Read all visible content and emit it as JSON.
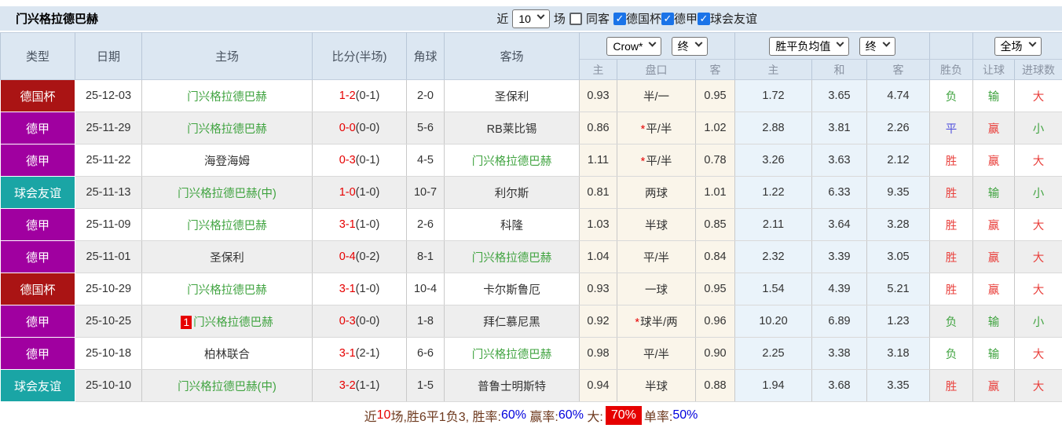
{
  "topbar": {
    "title": "门兴格拉德巴赫",
    "recent_label": "近",
    "recent_value": "10",
    "matches_label": "场",
    "same_opponent_label": "同客",
    "same_opponent_checked": false,
    "filters": [
      {
        "label": "德国杯",
        "checked": true
      },
      {
        "label": "德甲",
        "checked": true
      },
      {
        "label": "球会友谊",
        "checked": true
      }
    ]
  },
  "header": {
    "columns": [
      "类型",
      "日期",
      "主场",
      "比分(半场)",
      "角球",
      "客场"
    ],
    "selects": {
      "odds_company": "Crow*",
      "odds_time1": "终",
      "avg_mode": "胜平负均值",
      "odds_time2": "终",
      "scope": "全场"
    },
    "sub_columns": [
      "主",
      "盘口",
      "客",
      "主",
      "和",
      "客",
      "胜负",
      "让球",
      "进球数"
    ]
  },
  "rows": [
    {
      "type": "德国杯",
      "date": "25-12-03",
      "home": "门兴格拉德巴赫",
      "home_self": true,
      "home_badge": "",
      "score": "1-2",
      "half": "(0-1)",
      "corners": "2-0",
      "away": "圣保利",
      "away_self": false,
      "star": false,
      "odds": [
        "0.93",
        "半/一",
        "0.95"
      ],
      "avg": [
        "1.72",
        "3.65",
        "4.74"
      ],
      "result": [
        "负",
        "green"
      ],
      "handicap_result": [
        "输",
        "green"
      ],
      "goals": [
        "大",
        "red"
      ]
    },
    {
      "type": "德甲",
      "date": "25-11-29",
      "home": "门兴格拉德巴赫",
      "home_self": true,
      "home_badge": "",
      "score": "0-0",
      "half": "(0-0)",
      "corners": "5-6",
      "away": "RB莱比锡",
      "away_self": false,
      "star": true,
      "odds": [
        "0.86",
        "平/半",
        "1.02"
      ],
      "avg": [
        "2.88",
        "3.81",
        "2.26"
      ],
      "result": [
        "平",
        "blue"
      ],
      "handicap_result": [
        "赢",
        "red"
      ],
      "goals": [
        "小",
        "green"
      ]
    },
    {
      "type": "德甲",
      "date": "25-11-22",
      "home": "海登海姆",
      "home_self": false,
      "home_badge": "",
      "score": "0-3",
      "half": "(0-1)",
      "corners": "4-5",
      "away": "门兴格拉德巴赫",
      "away_self": true,
      "star": true,
      "odds": [
        "1.11",
        "平/半",
        "0.78"
      ],
      "avg": [
        "3.26",
        "3.63",
        "2.12"
      ],
      "result": [
        "胜",
        "red"
      ],
      "handicap_result": [
        "赢",
        "red"
      ],
      "goals": [
        "大",
        "red"
      ]
    },
    {
      "type": "球会友谊",
      "date": "25-11-13",
      "home": "门兴格拉德巴赫(中)",
      "home_self": true,
      "home_badge": "",
      "score": "1-0",
      "half": "(1-0)",
      "corners": "10-7",
      "away": "利尔斯",
      "away_self": false,
      "star": false,
      "odds": [
        "0.81",
        "两球",
        "1.01"
      ],
      "avg": [
        "1.22",
        "6.33",
        "9.35"
      ],
      "result": [
        "胜",
        "red"
      ],
      "handicap_result": [
        "输",
        "green"
      ],
      "goals": [
        "小",
        "green"
      ]
    },
    {
      "type": "德甲",
      "date": "25-11-09",
      "home": "门兴格拉德巴赫",
      "home_self": true,
      "home_badge": "",
      "score": "3-1",
      "half": "(1-0)",
      "corners": "2-6",
      "away": "科隆",
      "away_self": false,
      "star": false,
      "odds": [
        "1.03",
        "半球",
        "0.85"
      ],
      "avg": [
        "2.11",
        "3.64",
        "3.28"
      ],
      "result": [
        "胜",
        "red"
      ],
      "handicap_result": [
        "赢",
        "red"
      ],
      "goals": [
        "大",
        "red"
      ]
    },
    {
      "type": "德甲",
      "date": "25-11-01",
      "home": "圣保利",
      "home_self": false,
      "home_badge": "",
      "score": "0-4",
      "half": "(0-2)",
      "corners": "8-1",
      "away": "门兴格拉德巴赫",
      "away_self": true,
      "star": false,
      "odds": [
        "1.04",
        "平/半",
        "0.84"
      ],
      "avg": [
        "2.32",
        "3.39",
        "3.05"
      ],
      "result": [
        "胜",
        "red"
      ],
      "handicap_result": [
        "赢",
        "red"
      ],
      "goals": [
        "大",
        "red"
      ]
    },
    {
      "type": "德国杯",
      "date": "25-10-29",
      "home": "门兴格拉德巴赫",
      "home_self": true,
      "home_badge": "",
      "score": "3-1",
      "half": "(1-0)",
      "corners": "10-4",
      "away": "卡尔斯鲁厄",
      "away_self": false,
      "star": false,
      "odds": [
        "0.93",
        "一球",
        "0.95"
      ],
      "avg": [
        "1.54",
        "4.39",
        "5.21"
      ],
      "result": [
        "胜",
        "red"
      ],
      "handicap_result": [
        "赢",
        "red"
      ],
      "goals": [
        "大",
        "red"
      ]
    },
    {
      "type": "德甲",
      "date": "25-10-25",
      "home": "门兴格拉德巴赫",
      "home_self": true,
      "home_badge": "1",
      "score": "0-3",
      "half": "(0-0)",
      "corners": "1-8",
      "away": "拜仁慕尼黑",
      "away_self": false,
      "star": true,
      "odds": [
        "0.92",
        "球半/两",
        "0.96"
      ],
      "avg": [
        "10.20",
        "6.89",
        "1.23"
      ],
      "result": [
        "负",
        "green"
      ],
      "handicap_result": [
        "输",
        "green"
      ],
      "goals": [
        "小",
        "green"
      ]
    },
    {
      "type": "德甲",
      "date": "25-10-18",
      "home": "柏林联合",
      "home_self": false,
      "home_badge": "",
      "score": "3-1",
      "half": "(2-1)",
      "corners": "6-6",
      "away": "门兴格拉德巴赫",
      "away_self": true,
      "star": false,
      "odds": [
        "0.98",
        "平/半",
        "0.90"
      ],
      "avg": [
        "2.25",
        "3.38",
        "3.18"
      ],
      "result": [
        "负",
        "green"
      ],
      "handicap_result": [
        "输",
        "green"
      ],
      "goals": [
        "大",
        "red"
      ]
    },
    {
      "type": "球会友谊",
      "date": "25-10-10",
      "home": "门兴格拉德巴赫(中)",
      "home_self": true,
      "home_badge": "",
      "score": "3-2",
      "half": "(1-1)",
      "corners": "1-5",
      "away": "普鲁士明斯特",
      "away_self": false,
      "star": false,
      "odds": [
        "0.94",
        "半球",
        "0.88"
      ],
      "avg": [
        "1.94",
        "3.68",
        "3.35"
      ],
      "result": [
        "胜",
        "red"
      ],
      "handicap_result": [
        "赢",
        "red"
      ],
      "goals": [
        "大",
        "red"
      ]
    }
  ],
  "summary": {
    "segments": [
      {
        "text": "近",
        "style": "plain"
      },
      {
        "text": "10",
        "style": "red"
      },
      {
        "text": "场,胜6平1负3, ",
        "style": "plain"
      },
      {
        "text": "胜率:",
        "style": "plain"
      },
      {
        "text": "60%",
        "style": "blue"
      },
      {
        "text": " 赢率:",
        "style": "plain"
      },
      {
        "text": "60%",
        "style": "blue"
      },
      {
        "text": " 大:",
        "style": "plain"
      },
      {
        "text": "70%",
        "style": "redbg"
      },
      {
        "text": "单率:",
        "style": "plain"
      },
      {
        "text": "50%",
        "style": "blue"
      }
    ]
  },
  "colors": {
    "header_bg": "#dce7f2",
    "type": {
      "德国杯": "#aa1414",
      "德甲": "#a000a0",
      "球会友谊": "#1aa5a5"
    },
    "result": {
      "red": "#e9413d",
      "green": "#3fa33f",
      "blue": "#5454dd"
    },
    "score_red": "#e60000",
    "self_team_green": "#3fa33f",
    "summary_blue": "#0000dd",
    "summary_highlight_bg": "#e60000"
  }
}
